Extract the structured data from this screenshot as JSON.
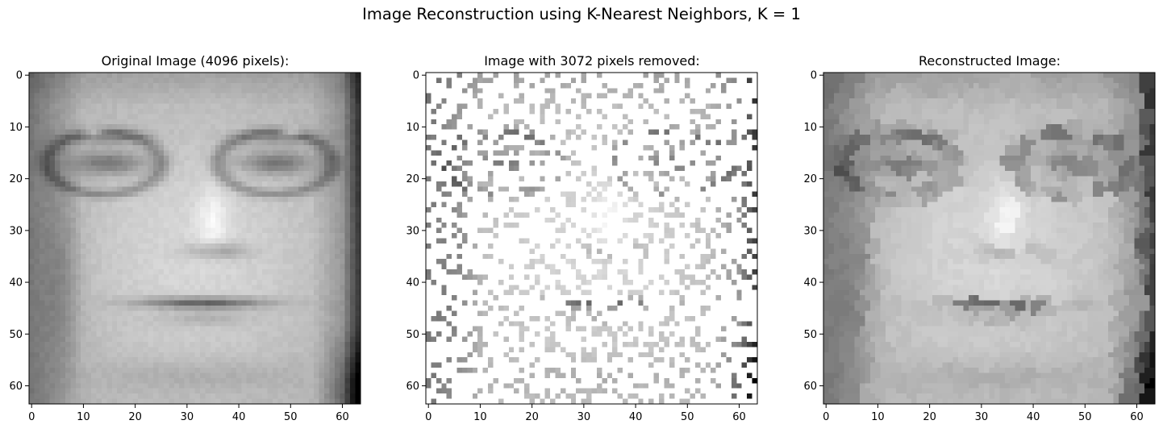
{
  "figure": {
    "title": "Image Reconstruction using K-Nearest Neighbors, K = 1"
  },
  "panels": [
    {
      "title": "Original Image (4096 pixels):",
      "kind": "original",
      "icon": "face-photo"
    },
    {
      "title": "Image with 3072 pixels removed:",
      "kind": "masked",
      "icon": "sparse-face-photo"
    },
    {
      "title": "Reconstructed Image:",
      "kind": "reconstructed",
      "icon": "blocky-face-photo"
    }
  ],
  "axes": {
    "xticks": [
      "0",
      "10",
      "20",
      "30",
      "40",
      "50",
      "60"
    ],
    "yticks": [
      "0",
      "10",
      "20",
      "30",
      "40",
      "50",
      "60"
    ],
    "xlim": [
      -0.5,
      63.5
    ],
    "ylim": [
      63.5,
      -0.5
    ],
    "image_size": [
      64,
      64
    ],
    "colormap": "gray"
  }
}
